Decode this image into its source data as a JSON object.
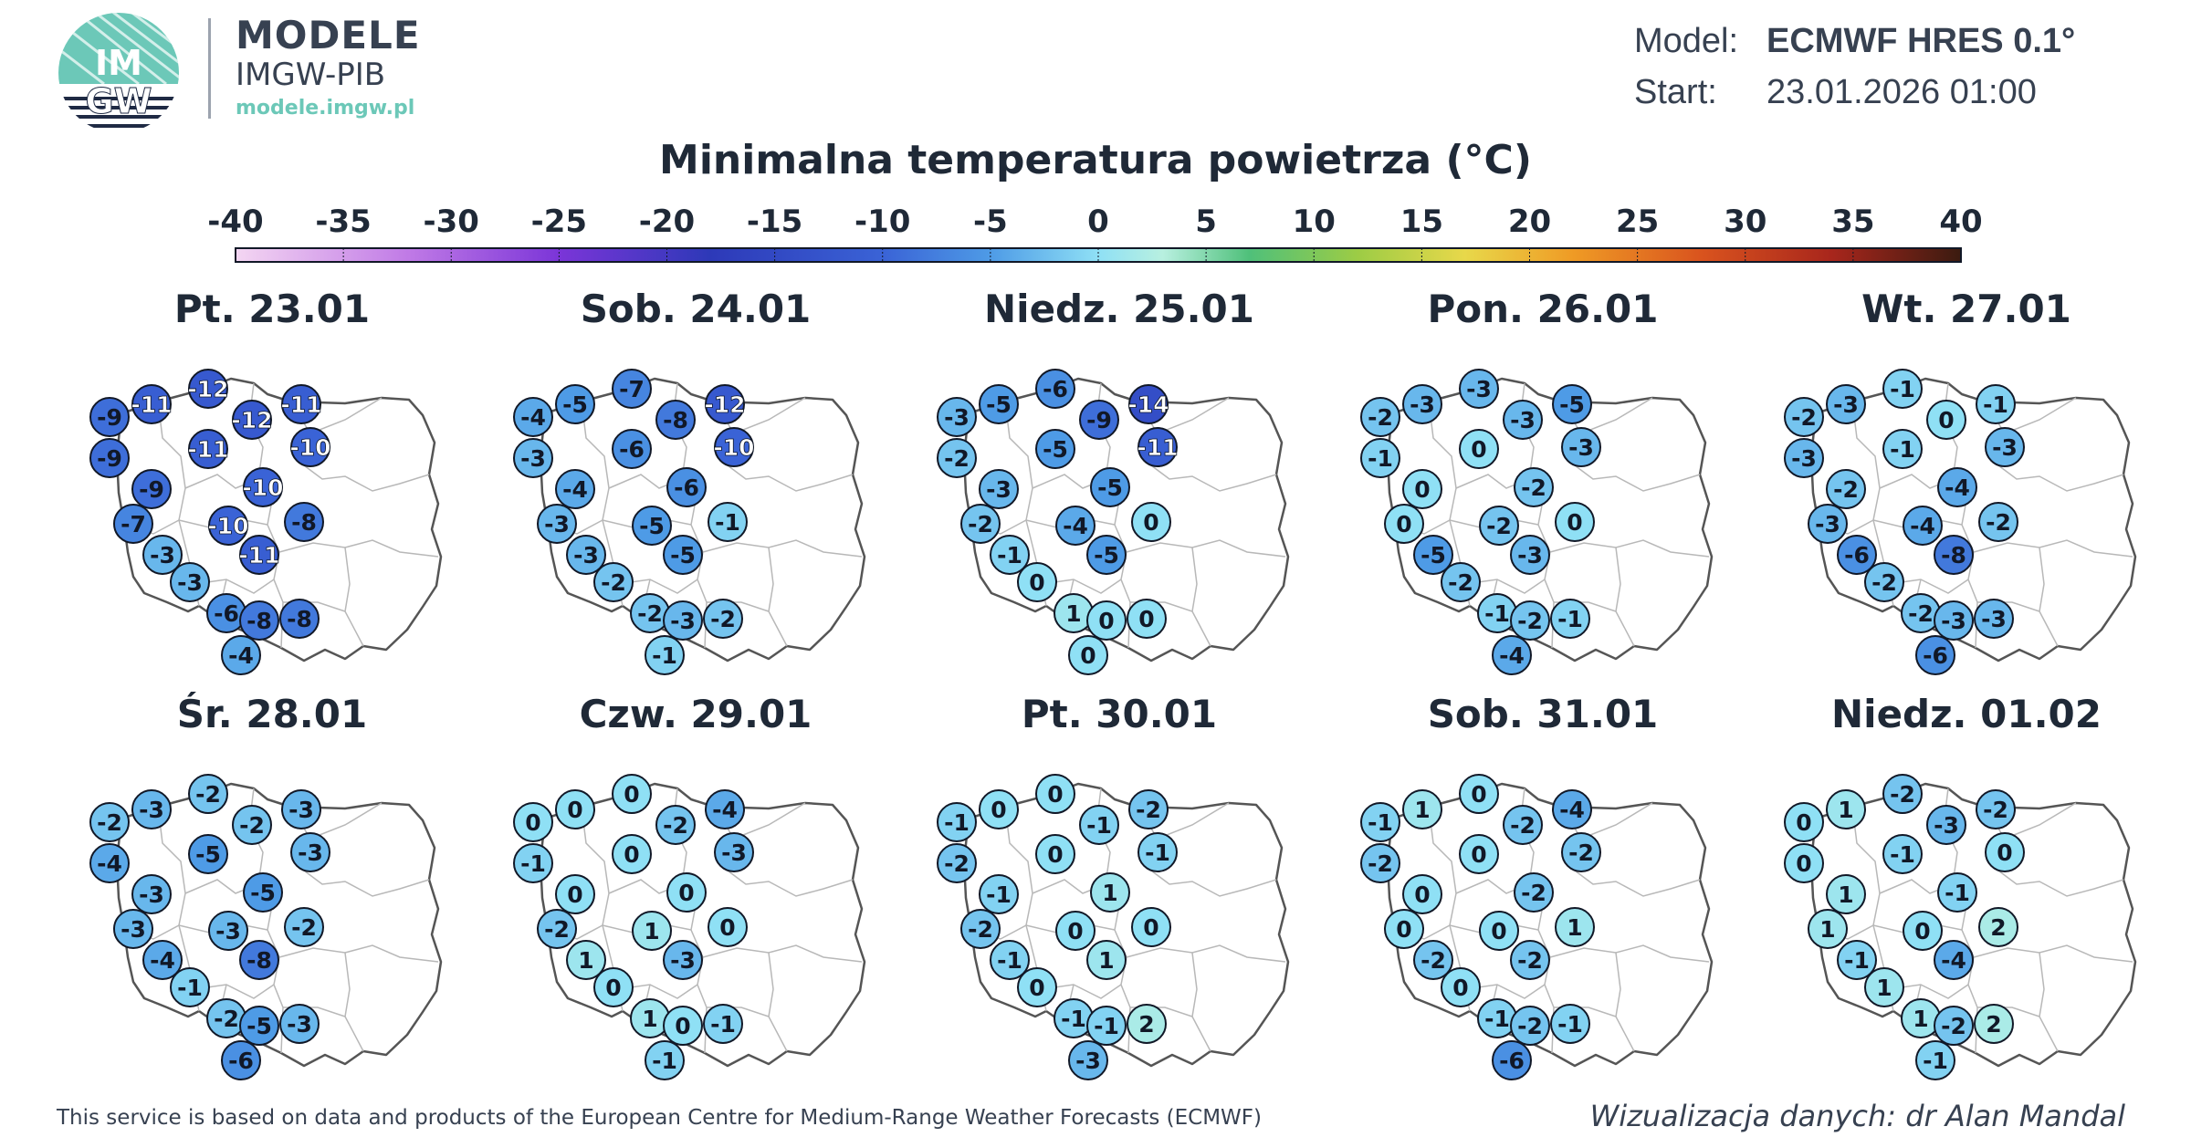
{
  "brand": {
    "logo_text_top": "IM",
    "logo_text_bottom": "GW",
    "name": "MODELE",
    "org": "IMGW-PIB",
    "url": "modele.imgw.pl"
  },
  "meta": {
    "model_label": "Model:",
    "model_value": "ECMWF HRES 0.1°",
    "start_label": "Start:",
    "start_value": "23.01.2026 01:00"
  },
  "title": "Minimalna temperatura powietrza (°C)",
  "scale": {
    "ticks": [
      "-40",
      "-35",
      "-30",
      "-25",
      "-20",
      "-15",
      "-10",
      "-5",
      "0",
      "5",
      "10",
      "15",
      "20",
      "25",
      "30",
      "35",
      "40"
    ],
    "min": -40,
    "max": 40,
    "stops": [
      {
        "v": -40,
        "c": "#f4d6f2"
      },
      {
        "v": -32,
        "c": "#c07ae6"
      },
      {
        "v": -25,
        "c": "#7b35d8"
      },
      {
        "v": -18,
        "c": "#2d39b8"
      },
      {
        "v": -10,
        "c": "#3a63d6"
      },
      {
        "v": -5,
        "c": "#4e9be6"
      },
      {
        "v": 0,
        "c": "#8fe0f5"
      },
      {
        "v": 3,
        "c": "#b8f0e0"
      },
      {
        "v": 7,
        "c": "#4fc07a"
      },
      {
        "v": 12,
        "c": "#9ccc45"
      },
      {
        "v": 17,
        "c": "#e8d84a"
      },
      {
        "v": 22,
        "c": "#ef9b25"
      },
      {
        "v": 28,
        "c": "#d9531e"
      },
      {
        "v": 34,
        "c": "#a8261c"
      },
      {
        "v": 40,
        "c": "#3b1b10"
      }
    ]
  },
  "panels": [
    {
      "date": "Pt. 23.01",
      "values": [
        -9,
        -11,
        -12,
        -12,
        -11,
        -9,
        -11,
        -10,
        -9,
        -10,
        -7,
        -10,
        -8,
        -3,
        -11,
        -3,
        -6,
        -8,
        -8,
        -4
      ]
    },
    {
      "date": "Sob. 24.01",
      "values": [
        -4,
        -5,
        -7,
        -8,
        -12,
        -3,
        -6,
        -10,
        -4,
        -6,
        -3,
        -5,
        -1,
        -3,
        -5,
        -2,
        -2,
        -3,
        -2,
        -1
      ]
    },
    {
      "date": "Niedz. 25.01",
      "values": [
        -3,
        -5,
        -6,
        -9,
        -14,
        -2,
        -5,
        -11,
        -3,
        -5,
        -2,
        -4,
        0,
        -1,
        -5,
        0,
        1,
        0,
        0,
        0
      ]
    },
    {
      "date": "Pon. 26.01",
      "values": [
        -2,
        -3,
        -3,
        -3,
        -5,
        -1,
        0,
        -3,
        0,
        -2,
        0,
        -2,
        0,
        -5,
        -3,
        -2,
        -1,
        -2,
        -1,
        -4
      ]
    },
    {
      "date": "Wt. 27.01",
      "values": [
        -2,
        -3,
        -1,
        0,
        -1,
        -3,
        -1,
        -3,
        -2,
        -4,
        -3,
        -4,
        -2,
        -6,
        -8,
        -2,
        -2,
        -3,
        -3,
        -6
      ]
    },
    {
      "date": "Śr. 28.01",
      "values": [
        -2,
        -3,
        -2,
        -2,
        -3,
        -4,
        -5,
        -3,
        -3,
        -5,
        -3,
        -3,
        -2,
        -4,
        -8,
        -1,
        -2,
        -5,
        -3,
        -6
      ]
    },
    {
      "date": "Czw. 29.01",
      "values": [
        0,
        0,
        0,
        -2,
        -4,
        -1,
        0,
        -3,
        0,
        0,
        -2,
        1,
        0,
        1,
        -3,
        0,
        1,
        0,
        -1,
        -1
      ]
    },
    {
      "date": "Pt. 30.01",
      "values": [
        -1,
        0,
        0,
        -1,
        -2,
        -2,
        0,
        -1,
        -1,
        1,
        -2,
        0,
        0,
        -1,
        1,
        0,
        -1,
        -1,
        2,
        -3
      ]
    },
    {
      "date": "Sob. 31.01",
      "values": [
        -1,
        1,
        0,
        -2,
        -4,
        -2,
        0,
        -2,
        0,
        -2,
        0,
        0,
        1,
        -2,
        -2,
        0,
        -1,
        -2,
        -1,
        -6
      ]
    },
    {
      "date": "Niedz. 01.02",
      "values": [
        0,
        1,
        -2,
        -3,
        -2,
        0,
        -1,
        0,
        1,
        -1,
        1,
        0,
        2,
        -1,
        -4,
        1,
        1,
        -2,
        2,
        -1
      ]
    }
  ],
  "footer": {
    "note": "This service is based on data and products of the European Centre for Medium-Range Weather Forecasts (ECMWF)",
    "author": "Wizualizacja danych: dr Alan Mandal"
  }
}
